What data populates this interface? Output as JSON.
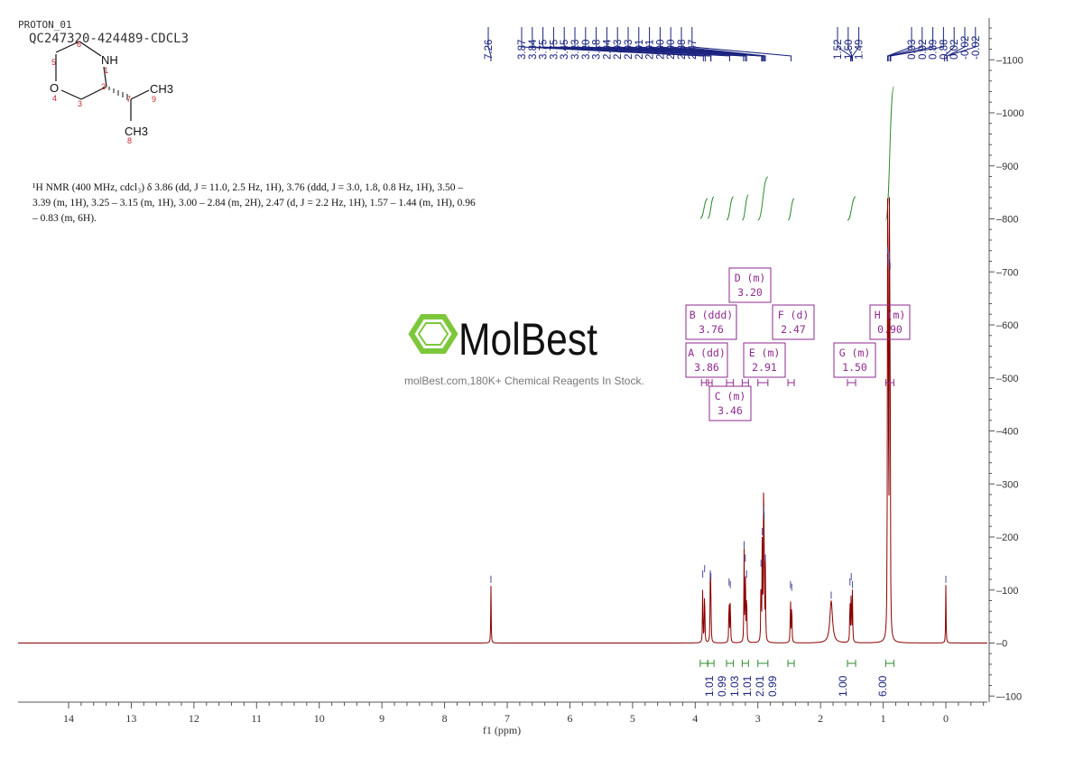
{
  "header": {
    "experiment": "PROTON_01",
    "sample": "QC247320-424489-CDCL3"
  },
  "structure": {
    "atom_labels": [
      "NH",
      "O",
      "CH3",
      "CH3"
    ],
    "numbers": [
      "1",
      "2",
      "3",
      "4",
      "5",
      "6",
      "7",
      "8",
      "9"
    ]
  },
  "description": {
    "line1": "¹H NMR (400 MHz, cdcl₃) δ 3.86 (dd, J = 11.0, 2.5 Hz, 1H), 3.76 (ddd, J = 3.0, 1.8, 0.8 Hz, 1H), 3.50 –",
    "line2": "3.39 (m, 1H), 3.25 – 3.15 (m, 1H), 3.00 – 2.84 (m, 2H), 2.47 (d, J = 2.2 Hz, 1H), 1.57 – 1.44 (m, 1H), 0.96",
    "line3": "– 0.83 (m, 6H)."
  },
  "watermark": {
    "brand": "MolBest",
    "tagline": "molBest.com,180K+ Chemical Reagents In Stock."
  },
  "colors": {
    "spectrum": "#8b0000",
    "peak_labels": "#1a237e",
    "multiplet_boxes": "#8e2a8e",
    "integrals": "#2e8b2e",
    "axis": "#555555",
    "logo": "#7dc73a"
  },
  "chart_data": {
    "type": "line",
    "xlabel": "f1 (ppm)",
    "xlim": [
      14.7,
      -0.65
    ],
    "ylim": [
      -110,
      1180
    ],
    "x_ticks": [
      14,
      13,
      12,
      11,
      10,
      9,
      8,
      7,
      6,
      5,
      4,
      3,
      2,
      1,
      0
    ],
    "y_ticks": [
      -100,
      0,
      100,
      200,
      300,
      400,
      500,
      600,
      700,
      800,
      900,
      1000,
      1100
    ],
    "peaks": [
      {
        "ppm": 7.26,
        "height": 110,
        "width": 0.004
      },
      {
        "ppm": 3.88,
        "height": 120,
        "width": 0.004
      },
      {
        "ppm": 3.85,
        "height": 130,
        "width": 0.004
      },
      {
        "ppm": 3.76,
        "height": 120,
        "width": 0.004
      },
      {
        "ppm": 3.75,
        "height": 115,
        "width": 0.004
      },
      {
        "ppm": 3.46,
        "height": 105,
        "width": 0.004
      },
      {
        "ppm": 3.44,
        "height": 100,
        "width": 0.004
      },
      {
        "ppm": 3.22,
        "height": 175,
        "width": 0.004
      },
      {
        "ppm": 3.2,
        "height": 150,
        "width": 0.004
      },
      {
        "ppm": 3.18,
        "height": 120,
        "width": 0.004
      },
      {
        "ppm": 2.95,
        "height": 140,
        "width": 0.004
      },
      {
        "ppm": 2.93,
        "height": 200,
        "width": 0.004
      },
      {
        "ppm": 2.91,
        "height": 240,
        "width": 0.004
      },
      {
        "ppm": 2.9,
        "height": 230,
        "width": 0.004
      },
      {
        "ppm": 2.88,
        "height": 150,
        "width": 0.004
      },
      {
        "ppm": 2.48,
        "height": 100,
        "width": 0.004
      },
      {
        "ppm": 2.46,
        "height": 95,
        "width": 0.004
      },
      {
        "ppm": 1.83,
        "height": 80,
        "width": 0.025
      },
      {
        "ppm": 1.53,
        "height": 105,
        "width": 0.004
      },
      {
        "ppm": 1.51,
        "height": 115,
        "width": 0.004
      },
      {
        "ppm": 1.49,
        "height": 100,
        "width": 0.004
      },
      {
        "ppm": 0.93,
        "height": 730,
        "width": 0.004
      },
      {
        "ppm": 0.92,
        "height": 710,
        "width": 0.004
      },
      {
        "ppm": 0.9,
        "height": 720,
        "width": 0.004
      },
      {
        "ppm": 0.89,
        "height": 700,
        "width": 0.004
      },
      {
        "ppm": 0.0,
        "height": 110,
        "width": 0.004
      }
    ],
    "peak_labels": [
      "7.26",
      "3.87",
      "3.84",
      "3.75",
      "3.75",
      "3.45",
      "3.23",
      "3.20",
      "3.18",
      "2.94",
      "2.93",
      "2.93",
      "2.91",
      "2.91",
      "2.90",
      "2.90",
      "2.88",
      "2.47",
      "1.52",
      "1.50",
      "1.49",
      "0.93",
      "0.92",
      "0.89",
      "0.88",
      "0.02",
      "-0.02",
      "-0.02"
    ],
    "peak_label_ppm": [
      7.26,
      3.87,
      3.84,
      3.75,
      3.75,
      3.45,
      3.23,
      3.2,
      3.18,
      2.94,
      2.93,
      2.93,
      2.91,
      2.91,
      2.9,
      2.9,
      2.88,
      2.47,
      1.52,
      1.5,
      1.49,
      0.93,
      0.92,
      0.89,
      0.88,
      0.02,
      -0.02,
      -0.02
    ],
    "multiplets": [
      {
        "label": "A (dd)",
        "shift": "3.86",
        "ppm": 3.86,
        "range": [
          3.9,
          3.82
        ]
      },
      {
        "label": "B (ddd)",
        "shift": "3.76",
        "ppm": 3.76,
        "range": [
          3.79,
          3.73
        ]
      },
      {
        "label": "C (m)",
        "shift": "3.46",
        "ppm": 3.46,
        "range": [
          3.5,
          3.39
        ]
      },
      {
        "label": "D (m)",
        "shift": "3.20",
        "ppm": 3.2,
        "range": [
          3.25,
          3.15
        ]
      },
      {
        "label": "E (m)",
        "shift": "2.91",
        "ppm": 2.91,
        "range": [
          3.0,
          2.84
        ]
      },
      {
        "label": "F (d)",
        "shift": "2.47",
        "ppm": 2.47,
        "range": [
          2.52,
          2.42
        ]
      },
      {
        "label": "G (m)",
        "shift": "1.50",
        "ppm": 1.5,
        "range": [
          1.57,
          1.44
        ]
      },
      {
        "label": "H (m)",
        "shift": "0.90",
        "ppm": 0.9,
        "range": [
          0.96,
          0.83
        ]
      }
    ],
    "integrals": [
      {
        "value": "1.01",
        "from": 3.92,
        "to": 3.8
      },
      {
        "value": "0.99",
        "from": 3.8,
        "to": 3.7
      },
      {
        "value": "1.03",
        "from": 3.5,
        "to": 3.39
      },
      {
        "value": "1.01",
        "from": 3.25,
        "to": 3.15
      },
      {
        "value": "2.01",
        "from": 3.0,
        "to": 2.84
      },
      {
        "value": "0.99",
        "from": 2.52,
        "to": 2.42
      },
      {
        "value": "1.00",
        "from": 1.57,
        "to": 1.44
      },
      {
        "value": "6.00",
        "from": 0.96,
        "to": 0.83
      }
    ]
  }
}
